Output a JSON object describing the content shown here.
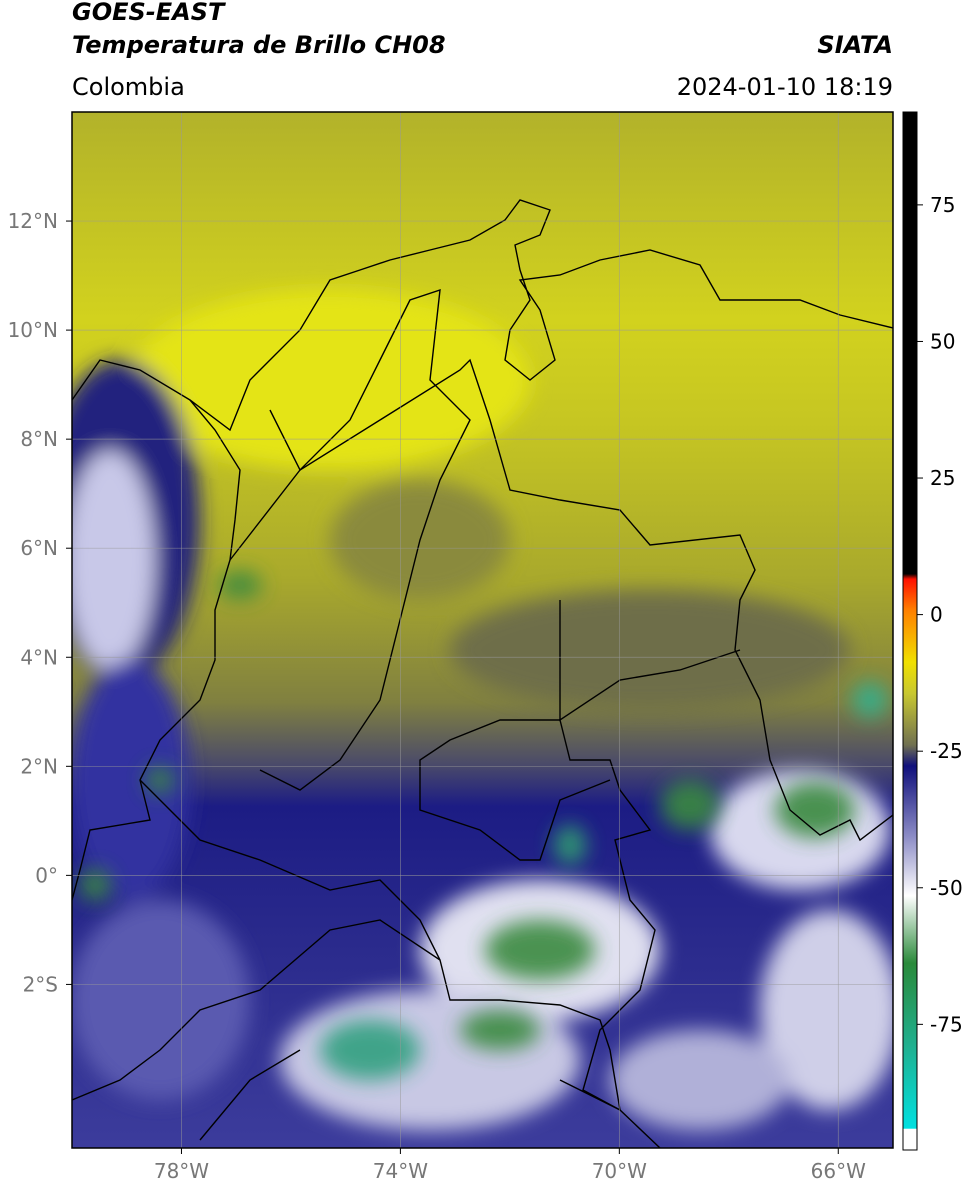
{
  "header": {
    "title": "GOES-EAST",
    "product": "Temperatura de Brillo CH08",
    "source": "SIATA",
    "region": "Colombia",
    "datetime": "2024-01-10 18:19"
  },
  "map": {
    "lon_range": [
      -80,
      -65
    ],
    "lat_range": [
      -5,
      14
    ],
    "lon_ticks": [
      {
        "value": -78,
        "label": "78°W"
      },
      {
        "value": -74,
        "label": "74°W"
      },
      {
        "value": -70,
        "label": "70°W"
      },
      {
        "value": -66,
        "label": "66°W"
      }
    ],
    "lat_ticks": [
      {
        "value": 12,
        "label": "12°N"
      },
      {
        "value": 10,
        "label": "10°N"
      },
      {
        "value": 8,
        "label": "8°N"
      },
      {
        "value": 6,
        "label": "6°N"
      },
      {
        "value": 4,
        "label": "4°N"
      },
      {
        "value": 2,
        "label": "2°N"
      },
      {
        "value": 0,
        "label": "0°"
      },
      {
        "value": -2,
        "label": "2°S"
      }
    ]
  },
  "colorbar": {
    "range": [
      -98,
      92
    ],
    "ticks": [
      75,
      50,
      25,
      0,
      -25,
      -50,
      -75
    ]
  }
}
